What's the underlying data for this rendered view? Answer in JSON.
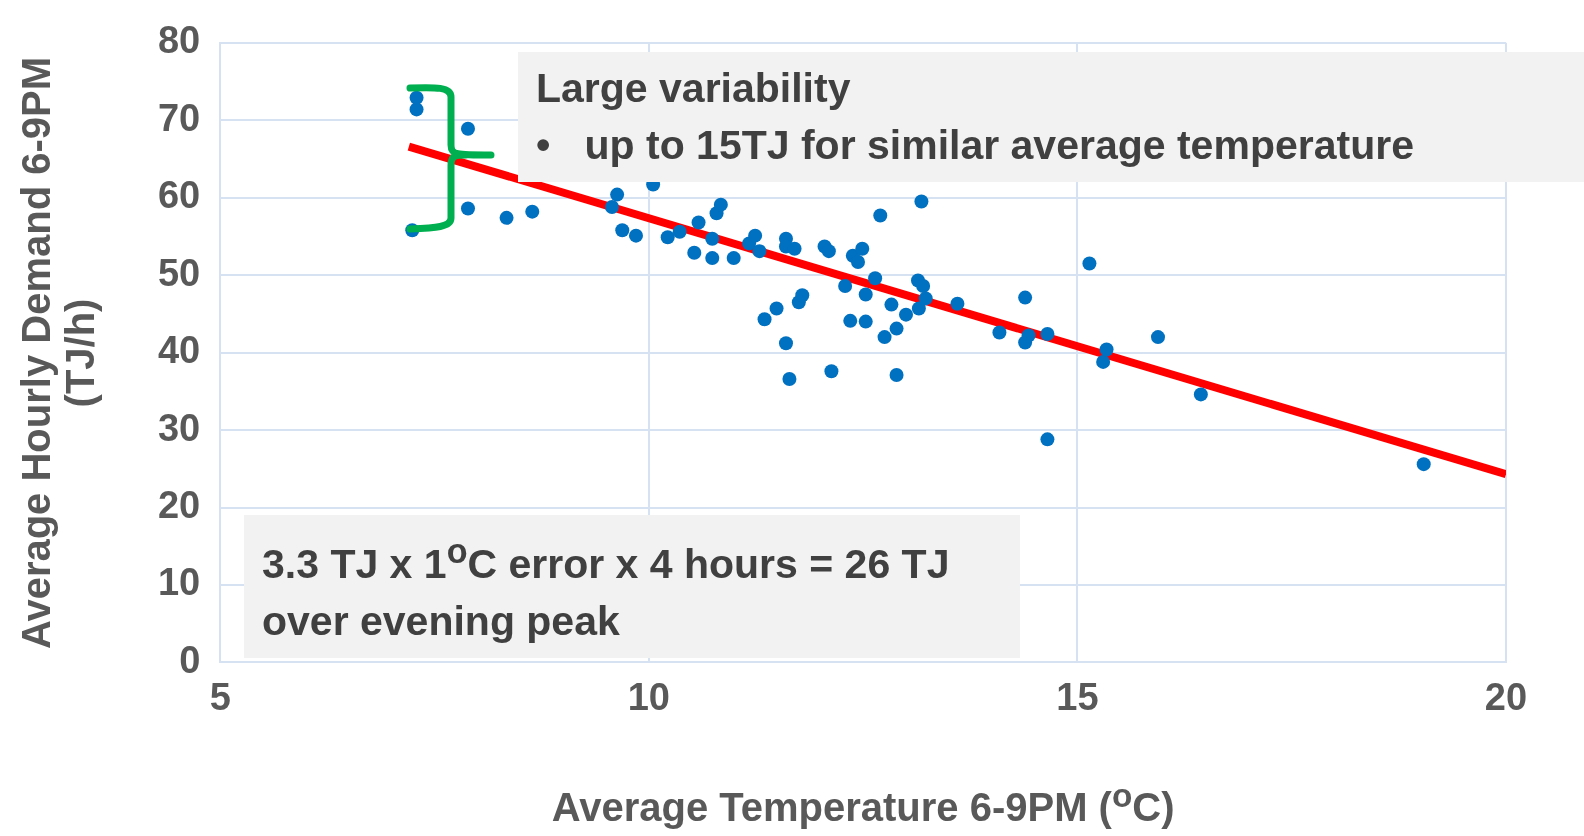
{
  "chart_data": {
    "type": "scatter",
    "xlabel": "Average Temperature 6-9PM ($^{o}$C)",
    "ylabel": "Average Hourly Demand 6-9PM (TJ/h)",
    "xlim": [
      5,
      20
    ],
    "xticks": [
      5,
      10,
      15,
      20
    ],
    "ylim": [
      0,
      80
    ],
    "yticks": [
      0,
      10,
      20,
      30,
      40,
      50,
      60,
      70,
      80
    ],
    "grid": true,
    "legend": false,
    "annotations": [
      "Large variability\n•   up to 15TJ for similar average temperature",
      "3.3 TJ x 1$^{o}$C error x 4 hours = 26 TJ over evening peak"
    ],
    "series": [
      {
        "color": "#0070c0",
        "marker": "circle",
        "x": [
          7.24,
          7.29,
          7.29,
          7.89,
          7.89,
          8.34,
          8.64,
          9.57,
          9.69,
          9.85,
          9.63,
          10.05,
          10.22,
          10.36,
          10.58,
          10.53,
          10.74,
          10.74,
          10.79,
          10.84,
          10.99,
          11.17,
          11.24,
          11.29,
          11.35,
          11.49,
          11.6,
          11.64,
          11.6,
          11.6,
          11.7,
          11.75,
          11.79,
          12.05,
          12.1,
          12.13,
          12.29,
          12.35,
          12.38,
          12.44,
          12.49,
          12.53,
          12.53,
          12.64,
          12.7,
          12.75,
          12.83,
          12.89,
          12.89,
          13.0,
          13.14,
          13.15,
          13.18,
          13.2,
          13.23,
          13.6,
          14.09,
          14.39,
          14.39,
          14.43,
          14.65,
          14.65,
          15.14,
          15.3,
          15.34,
          15.94,
          16.44,
          19.04
        ],
        "values": [
          55.8,
          71.4,
          72.9,
          68.9,
          58.6,
          57.4,
          58.2,
          58.8,
          55.8,
          55.1,
          60.4,
          61.7,
          54.9,
          55.6,
          56.8,
          52.9,
          52.2,
          54.7,
          58.0,
          59.1,
          52.2,
          54.1,
          55.1,
          53.1,
          44.3,
          45.7,
          41.2,
          36.6,
          54.7,
          53.7,
          53.4,
          46.5,
          47.4,
          53.7,
          53.1,
          37.6,
          48.6,
          44.1,
          52.5,
          51.7,
          53.4,
          47.5,
          44.0,
          49.6,
          57.7,
          42.0,
          46.2,
          43.1,
          37.1,
          44.9,
          49.3,
          45.7,
          59.5,
          48.6,
          47.0,
          46.3,
          42.6,
          41.3,
          47.1,
          42.2,
          42.4,
          28.8,
          51.5,
          38.8,
          40.4,
          42.0,
          34.6,
          25.6
        ]
      },
      {
        "type": "line",
        "color": "#ff0000",
        "marker": "none",
        "line_style": "solid",
        "x": [
          7.2,
          20
        ],
        "values": [
          66.6,
          24.3
        ]
      }
    ]
  }
}
